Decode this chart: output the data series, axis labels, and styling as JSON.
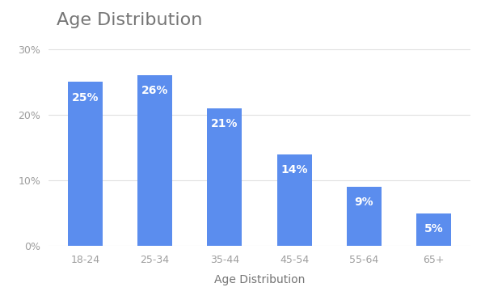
{
  "title": "Age Distribution",
  "xlabel": "Age Distribution",
  "categories": [
    "18-24",
    "25-34",
    "35-44",
    "45-54",
    "55-64",
    "65+"
  ],
  "values": [
    25,
    26,
    21,
    14,
    9,
    5
  ],
  "bar_color": "#5b8dee",
  "label_color": "#ffffff",
  "yticks": [
    0,
    10,
    20,
    30
  ],
  "ylim": [
    0,
    32
  ],
  "background_color": "#ffffff",
  "grid_color": "#e0e0e0",
  "tick_color": "#9e9e9e",
  "title_color": "#757575",
  "axis_label_color": "#757575",
  "title_fontsize": 16,
  "label_fontsize": 9,
  "xlabel_fontsize": 10,
  "bar_label_fontsize": 10,
  "bar_width": 0.5
}
